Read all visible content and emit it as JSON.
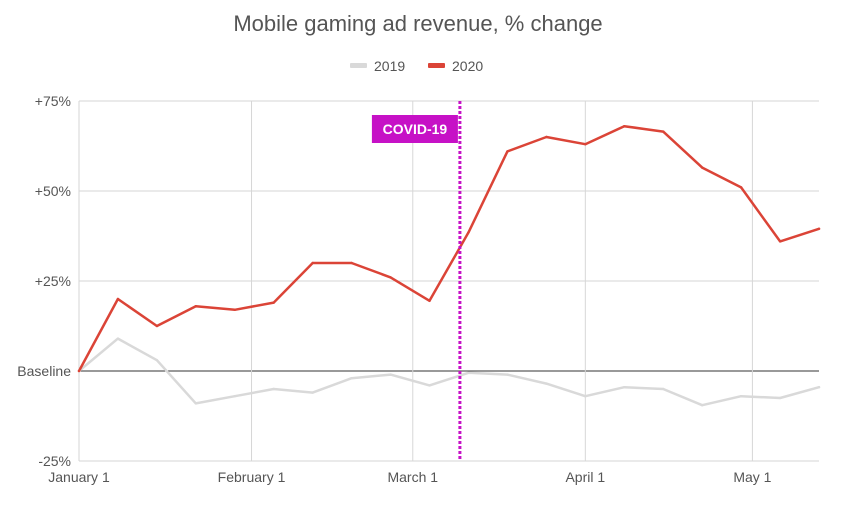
{
  "chart_data": {
    "type": "line",
    "title": "Mobile gaming ad revenue, % change",
    "xlabel": "",
    "ylabel": "",
    "x": [
      "Jan 1",
      "Jan 8",
      "Jan 15",
      "Jan 22",
      "Jan 29",
      "Feb 5",
      "Feb 12",
      "Feb 19",
      "Feb 26",
      "Mar 4",
      "Mar 11",
      "Mar 18",
      "Mar 25",
      "Apr 1",
      "Apr 8",
      "Apr 15",
      "Apr 22",
      "Apr 29",
      "May 6",
      "May 13"
    ],
    "x_tick_labels": [
      {
        "label": "January 1",
        "index": 0
      },
      {
        "label": "February 1",
        "index": 4.43
      },
      {
        "label": "March 1",
        "index": 8.57
      },
      {
        "label": "April 1",
        "index": 13
      },
      {
        "label": "May 1",
        "index": 17.29
      }
    ],
    "y_ticks": [
      {
        "value": 75,
        "label": "+75%"
      },
      {
        "value": 50,
        "label": "+50%"
      },
      {
        "value": 25,
        "label": "+25%"
      },
      {
        "value": 0,
        "label": "Baseline"
      },
      {
        "value": -25,
        "label": "-25%"
      }
    ],
    "ylim": [
      -25,
      75
    ],
    "series": [
      {
        "name": "2019",
        "color": "#d9d9d9",
        "values": [
          0,
          9,
          3,
          -9,
          -7,
          -5,
          -6,
          -2,
          -1,
          -4,
          -0.5,
          -1,
          -3.5,
          -7,
          -4.5,
          -5,
          -9.5,
          -7,
          -7.5,
          -4.5
        ]
      },
      {
        "name": "2020",
        "color": "#db4437",
        "values": [
          0,
          20,
          12.5,
          18,
          17,
          19,
          30,
          30,
          26,
          19.5,
          38.5,
          61,
          65,
          63,
          68,
          66.5,
          56.5,
          51,
          36,
          39.5
        ]
      }
    ],
    "annotation": {
      "label": "COVID-19",
      "index": 9.78,
      "color": "#c611c6"
    },
    "grid": true,
    "legend_position": "top-center"
  }
}
